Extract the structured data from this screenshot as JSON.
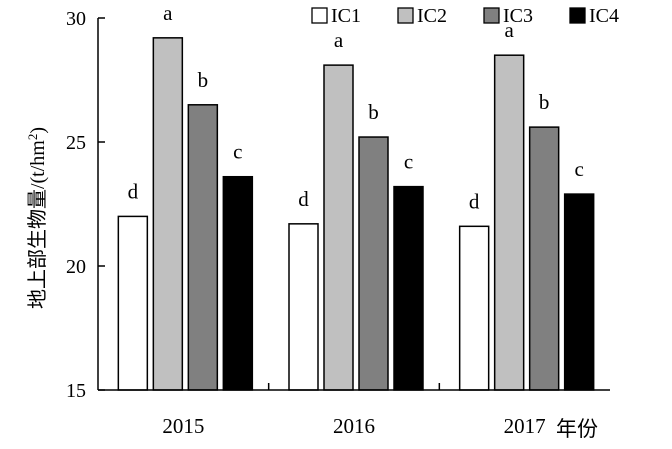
{
  "chart_data": {
    "type": "bar",
    "categories": [
      "2015",
      "2016",
      "2017"
    ],
    "x_unit_label": "年份",
    "ylabel": "地上部生物量/(t/hm",
    "ylabel_superscript": "2",
    "ylabel_suffix": ")",
    "ylim": [
      15,
      30
    ],
    "yticks": [
      15,
      20,
      25,
      30
    ],
    "grid": false,
    "legend_position": "top-right",
    "series": [
      {
        "name": "IC1",
        "color": "#ffffff",
        "values": [
          22.0,
          21.7,
          21.6
        ],
        "labels": [
          "d",
          "d",
          "d"
        ]
      },
      {
        "name": "IC2",
        "color": "#c0c0c0",
        "values": [
          29.2,
          28.1,
          28.5
        ],
        "labels": [
          "a",
          "a",
          "a"
        ]
      },
      {
        "name": "IC3",
        "color": "#808080",
        "values": [
          26.5,
          25.2,
          25.6
        ],
        "labels": [
          "b",
          "b",
          "b"
        ]
      },
      {
        "name": "IC4",
        "color": "#000000",
        "values": [
          23.6,
          23.2,
          22.9
        ],
        "labels": [
          "c",
          "c",
          "c"
        ]
      }
    ]
  }
}
